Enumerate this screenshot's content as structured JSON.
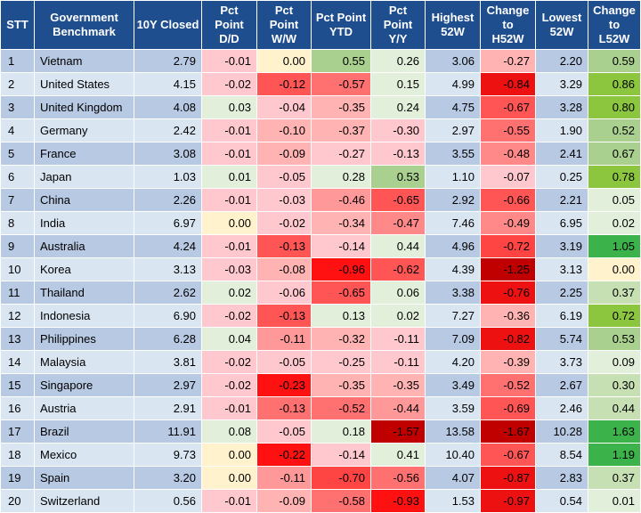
{
  "headers": [
    "STT",
    "Government\nBenchmark",
    "10Y Closed",
    "Pct\nPoint\nD/D",
    "Pct\nPoint\nW/W",
    "Pct Point\nYTD",
    "Pct\nPoint\nY/Y",
    "Highest\n52W",
    "Change\nto\nH52W",
    "Lowest\n52W",
    "Change\nto\nL52W"
  ],
  "rows": [
    {
      "stt": "1",
      "name": "Vietnam",
      "closed": "2.79",
      "dd": "-0.01",
      "ww": "0.00",
      "ytd": "0.55",
      "yy": "0.26",
      "h52": "3.06",
      "ch": "-0.27",
      "l52": "2.20",
      "cl": "0.59",
      "colors": {
        "dd": "#ffc7ce",
        "ww": "#fff2cc",
        "ytd": "#a9d08e",
        "yy": "#e2efda",
        "ch": "#ffb3b3",
        "cl": "#a9d08e"
      }
    },
    {
      "stt": "2",
      "name": "United States",
      "closed": "4.15",
      "dd": "-0.02",
      "ww": "-0.12",
      "ytd": "-0.57",
      "yy": "0.15",
      "h52": "4.99",
      "ch": "-0.84",
      "l52": "3.29",
      "cl": "0.86",
      "colors": {
        "dd": "#ffc7ce",
        "ww": "#ff5555",
        "ytd": "#ff7070",
        "yy": "#e2efda",
        "ch": "#ee1111",
        "cl": "#8cc63f"
      }
    },
    {
      "stt": "3",
      "name": "United Kingdom",
      "closed": "4.08",
      "dd": "0.03",
      "ww": "-0.04",
      "ytd": "-0.35",
      "yy": "0.24",
      "h52": "4.75",
      "ch": "-0.67",
      "l52": "3.28",
      "cl": "0.80",
      "colors": {
        "dd": "#e2efda",
        "ww": "#ffc7ce",
        "ytd": "#ffb3b3",
        "yy": "#e2efda",
        "ch": "#ff5555",
        "cl": "#8cc63f"
      }
    },
    {
      "stt": "4",
      "name": "Germany",
      "closed": "2.42",
      "dd": "-0.01",
      "ww": "-0.10",
      "ytd": "-0.37",
      "yy": "-0.30",
      "h52": "2.97",
      "ch": "-0.55",
      "l52": "1.90",
      "cl": "0.52",
      "colors": {
        "dd": "#ffc7ce",
        "ww": "#ffb3b3",
        "ytd": "#ffb3b3",
        "yy": "#ffc7ce",
        "ch": "#ff7070",
        "cl": "#a9d08e"
      }
    },
    {
      "stt": "5",
      "name": "France",
      "closed": "3.08",
      "dd": "-0.01",
      "ww": "-0.09",
      "ytd": "-0.27",
      "yy": "-0.13",
      "h52": "3.55",
      "ch": "-0.48",
      "l52": "2.41",
      "cl": "0.67",
      "colors": {
        "dd": "#ffc7ce",
        "ww": "#ffb3b3",
        "ytd": "#ffc7ce",
        "yy": "#ffc7ce",
        "ch": "#ff8888",
        "cl": "#a9d08e"
      }
    },
    {
      "stt": "6",
      "name": "Japan",
      "closed": "1.03",
      "dd": "0.01",
      "ww": "-0.05",
      "ytd": "0.28",
      "yy": "0.53",
      "h52": "1.10",
      "ch": "-0.07",
      "l52": "0.25",
      "cl": "0.78",
      "colors": {
        "dd": "#e2efda",
        "ww": "#ffc7ce",
        "ytd": "#e2efda",
        "yy": "#a9d08e",
        "ch": "#ffc7ce",
        "cl": "#8cc63f"
      }
    },
    {
      "stt": "7",
      "name": "China",
      "closed": "2.26",
      "dd": "-0.01",
      "ww": "-0.03",
      "ytd": "-0.46",
      "yy": "-0.65",
      "h52": "2.92",
      "ch": "-0.66",
      "l52": "2.21",
      "cl": "0.05",
      "colors": {
        "dd": "#ffc7ce",
        "ww": "#ffc7ce",
        "ytd": "#ff9999",
        "yy": "#ff5555",
        "ch": "#ff5555",
        "cl": "#e2efda"
      }
    },
    {
      "stt": "8",
      "name": "India",
      "closed": "6.97",
      "dd": "0.00",
      "ww": "-0.02",
      "ytd": "-0.34",
      "yy": "-0.47",
      "h52": "7.46",
      "ch": "-0.49",
      "l52": "6.95",
      "cl": "0.02",
      "colors": {
        "dd": "#fff2cc",
        "ww": "#ffc7ce",
        "ytd": "#ffb3b3",
        "yy": "#ff8888",
        "ch": "#ff8888",
        "cl": "#e2efda"
      }
    },
    {
      "stt": "9",
      "name": "Australia",
      "closed": "4.24",
      "dd": "-0.01",
      "ww": "-0.13",
      "ytd": "-0.14",
      "yy": "0.44",
      "h52": "4.96",
      "ch": "-0.72",
      "l52": "3.19",
      "cl": "1.05",
      "colors": {
        "dd": "#ffc7ce",
        "ww": "#ff5555",
        "ytd": "#ffc7ce",
        "yy": "#e2efda",
        "ch": "#ff4444",
        "cl": "#3cb34a"
      }
    },
    {
      "stt": "10",
      "name": "Korea",
      "closed": "3.13",
      "dd": "-0.03",
      "ww": "-0.08",
      "ytd": "-0.96",
      "yy": "-0.62",
      "h52": "4.39",
      "ch": "-1.25",
      "l52": "3.13",
      "cl": "0.00",
      "colors": {
        "dd": "#ffc7ce",
        "ww": "#ffb3b3",
        "ytd": "#ff1111",
        "yy": "#ff5555",
        "ch": "#c00000",
        "cl": "#fff2cc"
      }
    },
    {
      "stt": "11",
      "name": "Thailand",
      "closed": "2.62",
      "dd": "0.02",
      "ww": "-0.06",
      "ytd": "-0.65",
      "yy": "0.06",
      "h52": "3.38",
      "ch": "-0.76",
      "l52": "2.25",
      "cl": "0.37",
      "colors": {
        "dd": "#e2efda",
        "ww": "#ffc7ce",
        "ytd": "#ff5555",
        "yy": "#e2efda",
        "ch": "#ee1111",
        "cl": "#c6e0b4"
      }
    },
    {
      "stt": "12",
      "name": "Indonesia",
      "closed": "6.90",
      "dd": "-0.02",
      "ww": "-0.13",
      "ytd": "0.13",
      "yy": "0.02",
      "h52": "7.27",
      "ch": "-0.36",
      "l52": "6.19",
      "cl": "0.72",
      "colors": {
        "dd": "#ffc7ce",
        "ww": "#ff5555",
        "ytd": "#e2efda",
        "yy": "#e2efda",
        "ch": "#ffb3b3",
        "cl": "#8cc63f"
      }
    },
    {
      "stt": "13",
      "name": "Philippines",
      "closed": "6.28",
      "dd": "0.04",
      "ww": "-0.11",
      "ytd": "-0.32",
      "yy": "-0.11",
      "h52": "7.09",
      "ch": "-0.82",
      "l52": "5.74",
      "cl": "0.53",
      "colors": {
        "dd": "#e2efda",
        "ww": "#ff9999",
        "ytd": "#ffb3b3",
        "yy": "#ffc7ce",
        "ch": "#ee1111",
        "cl": "#a9d08e"
      }
    },
    {
      "stt": "14",
      "name": "Malaysia",
      "closed": "3.81",
      "dd": "-0.02",
      "ww": "-0.05",
      "ytd": "-0.25",
      "yy": "-0.11",
      "h52": "4.20",
      "ch": "-0.39",
      "l52": "3.73",
      "cl": "0.09",
      "colors": {
        "dd": "#ffc7ce",
        "ww": "#ffc7ce",
        "ytd": "#ffc7ce",
        "yy": "#ffc7ce",
        "ch": "#ffb3b3",
        "cl": "#e2efda"
      }
    },
    {
      "stt": "15",
      "name": "Singapore",
      "closed": "2.97",
      "dd": "-0.02",
      "ww": "-0.23",
      "ytd": "-0.35",
      "yy": "-0.35",
      "h52": "3.49",
      "ch": "-0.52",
      "l52": "2.67",
      "cl": "0.30",
      "colors": {
        "dd": "#ffc7ce",
        "ww": "#ff1111",
        "ytd": "#ffb3b3",
        "yy": "#ffb3b3",
        "ch": "#ff7070",
        "cl": "#c6e0b4"
      }
    },
    {
      "stt": "16",
      "name": "Austria",
      "closed": "2.91",
      "dd": "-0.01",
      "ww": "-0.13",
      "ytd": "-0.52",
      "yy": "-0.44",
      "h52": "3.59",
      "ch": "-0.69",
      "l52": "2.46",
      "cl": "0.44",
      "colors": {
        "dd": "#ffc7ce",
        "ww": "#ff7070",
        "ytd": "#ff7070",
        "yy": "#ff9999",
        "ch": "#ff5555",
        "cl": "#c6e0b4"
      }
    },
    {
      "stt": "17",
      "name": "Brazil",
      "closed": "11.91",
      "dd": "0.08",
      "ww": "-0.05",
      "ytd": "0.18",
      "yy": "-1.57",
      "h52": "13.58",
      "ch": "-1.67",
      "l52": "10.28",
      "cl": "1.63",
      "colors": {
        "dd": "#e2efda",
        "ww": "#ffc7ce",
        "ytd": "#e2efda",
        "yy": "#c00000",
        "ch": "#c00000",
        "cl": "#3cb34a"
      }
    },
    {
      "stt": "18",
      "name": "Mexico",
      "closed": "9.73",
      "dd": "0.00",
      "ww": "-0.22",
      "ytd": "-0.14",
      "yy": "0.41",
      "h52": "10.40",
      "ch": "-0.67",
      "l52": "8.54",
      "cl": "1.19",
      "colors": {
        "dd": "#fff2cc",
        "ww": "#ff1111",
        "ytd": "#ffc7ce",
        "yy": "#e2efda",
        "ch": "#ff5555",
        "cl": "#3cb34a"
      }
    },
    {
      "stt": "19",
      "name": "Spain",
      "closed": "3.20",
      "dd": "0.00",
      "ww": "-0.11",
      "ytd": "-0.70",
      "yy": "-0.56",
      "h52": "4.07",
      "ch": "-0.87",
      "l52": "2.83",
      "cl": "0.37",
      "colors": {
        "dd": "#fff2cc",
        "ww": "#ff9999",
        "ytd": "#ff4444",
        "yy": "#ff7070",
        "ch": "#ee1111",
        "cl": "#c6e0b4"
      }
    },
    {
      "stt": "20",
      "name": "Switzerland",
      "closed": "0.56",
      "dd": "-0.01",
      "ww": "-0.09",
      "ytd": "-0.58",
      "yy": "-0.93",
      "h52": "1.53",
      "ch": "-0.97",
      "l52": "0.54",
      "cl": "0.01",
      "colors": {
        "dd": "#ffc7ce",
        "ww": "#ffb3b3",
        "ytd": "#ff7070",
        "yy": "#ff1111",
        "ch": "#ee1111",
        "cl": "#e2efda"
      }
    }
  ]
}
